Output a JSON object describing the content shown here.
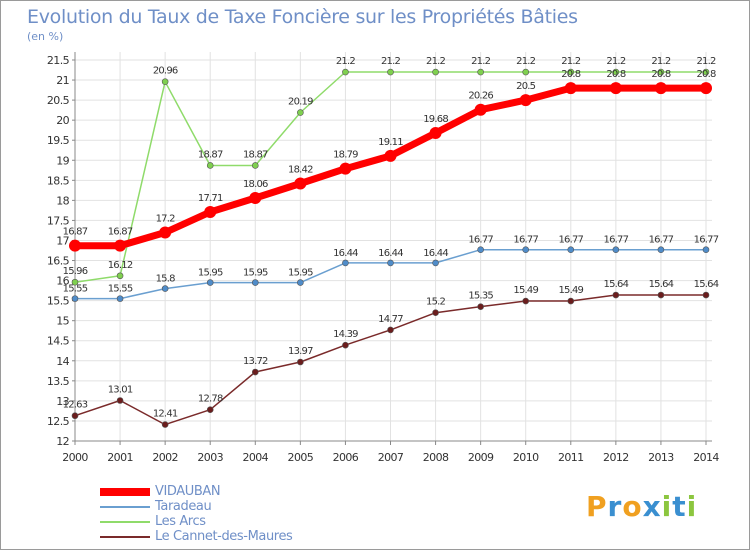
{
  "title": "Evolution du Taux de Taxe Foncière sur les Propriétés Bâties",
  "subtitle": "(en %)",
  "logo": {
    "letters": [
      "P",
      "r",
      "o",
      "x",
      "i",
      "t",
      "i"
    ],
    "colors": [
      "#f0a020",
      "#3a8fd0",
      "#f0a020",
      "#3a8fd0",
      "#8cc63f",
      "#3a8fd0",
      "#8cc63f"
    ]
  },
  "chart_data": {
    "type": "line",
    "title": "Evolution du Taux de Taxe Foncière sur les Propriétés Bâties",
    "ylabel": "(en %)",
    "ylim": [
      12,
      21.5
    ],
    "yticks": [
      "12",
      "12.5",
      "13",
      "13.5",
      "14",
      "14.5",
      "15",
      "15.5",
      "16",
      "16.5",
      "17",
      "17.5",
      "18",
      "18.5",
      "19",
      "19.5",
      "20",
      "20.5",
      "21",
      "21.5"
    ],
    "categories": [
      "2000",
      "2001",
      "2002",
      "2003",
      "2004",
      "2005",
      "2006",
      "2007",
      "2008",
      "2009",
      "2010",
      "2011",
      "2012",
      "2013",
      "2014"
    ],
    "series": [
      {
        "name": "VIDAUBAN",
        "color": "#ff0000",
        "values": [
          16.87,
          16.87,
          17.2,
          17.71,
          18.06,
          18.42,
          18.79,
          19.11,
          19.68,
          20.26,
          20.5,
          20.8,
          20.8,
          20.8,
          20.8
        ],
        "labels": [
          "16.87",
          "16.87",
          "17.2",
          "17.71",
          "18.06",
          "18.42",
          "18.79",
          "19.11",
          "19.68",
          "20.26",
          "20.5",
          "20.8",
          "20.8",
          "20.8",
          "20.8"
        ]
      },
      {
        "name": "Taradeau",
        "color": "#6a9fd0",
        "values": [
          15.55,
          15.55,
          15.8,
          15.95,
          15.95,
          15.95,
          16.44,
          16.44,
          16.44,
          16.77,
          16.77,
          16.77,
          16.77,
          16.77,
          16.77
        ],
        "labels": [
          "15.55",
          "15.55",
          "15.8",
          "15.95",
          "15.95",
          "15.95",
          "16.44",
          "16.44",
          "16.44",
          "16.77",
          "16.77",
          "16.77",
          "16.77",
          "16.77",
          "16.77"
        ]
      },
      {
        "name": "Les Arcs",
        "color": "#8fdb6a",
        "values": [
          15.96,
          16.12,
          20.96,
          18.87,
          18.87,
          20.19,
          21.2,
          21.2,
          21.2,
          21.2,
          21.2,
          21.2,
          21.2,
          21.2,
          21.2
        ],
        "labels": [
          "15.96",
          "16.12",
          "20.96",
          "18.87",
          "18.87",
          "20.19",
          "21.2",
          "21.2",
          "21.2",
          "21.2",
          "21.2",
          "21.2",
          "21.2",
          "21.2",
          "21.2"
        ]
      },
      {
        "name": "Le Cannet-des-Maures",
        "color": "#7a2a2a",
        "values": [
          12.63,
          13.01,
          12.41,
          12.78,
          13.72,
          13.97,
          14.39,
          14.77,
          15.2,
          15.35,
          15.49,
          15.49,
          15.64,
          15.64,
          15.64
        ],
        "labels": [
          "12.63",
          "13.01",
          "12.41",
          "12.78",
          "13.72",
          "13.97",
          "14.39",
          "14.77",
          "15.2",
          "15.35",
          "15.49",
          "15.49",
          "15.64",
          "15.64",
          "15.64"
        ]
      }
    ],
    "legend_position": "bottom-left"
  }
}
